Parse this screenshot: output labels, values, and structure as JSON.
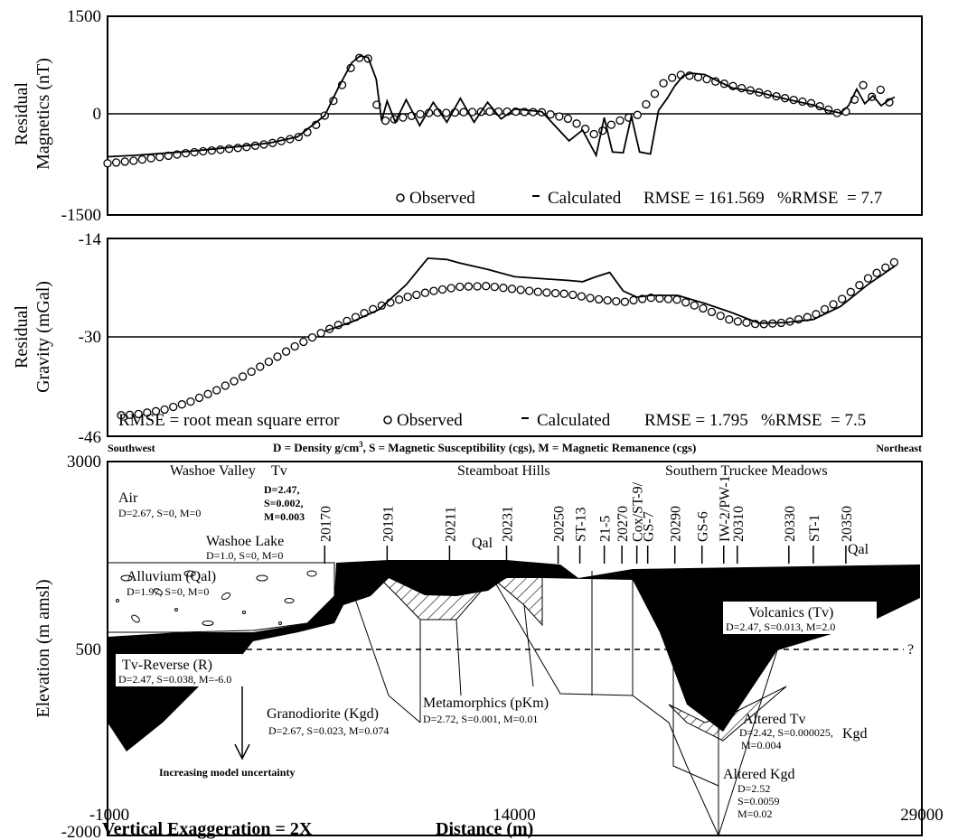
{
  "chart_data": [
    {
      "type": "line",
      "panel": "magnetics",
      "ylabel_line1": "Residual",
      "ylabel_line2": "Magnetics (nT)",
      "ylim": [
        -1500,
        1500
      ],
      "yticks": [
        "1500",
        "0",
        "-1500"
      ],
      "xlim": [
        -1000,
        29000
      ],
      "legend_observed": "Observed",
      "legend_calculated": "Calculated",
      "stats": "RMSE = 161.569   %RMSE  = 7.7",
      "series": [
        {
          "name": "Observed",
          "x": [
            -1000,
            0,
            1000,
            2000,
            3000,
            4000,
            5000,
            6000,
            6500,
            7000,
            7500,
            8000,
            8300,
            8600,
            8800,
            9000,
            9300,
            9600,
            10000,
            10500,
            11000,
            11500,
            12000,
            13000,
            14000,
            15000,
            16000,
            17000,
            17500,
            18000,
            18500,
            19000,
            19500,
            20000,
            20500,
            21000,
            22000,
            23000,
            24000,
            25000,
            25500,
            26000,
            26300,
            26600,
            26900,
            27200,
            27500,
            27800,
            28000
          ],
          "y": [
            -720,
            -680,
            -620,
            -560,
            -520,
            -480,
            -420,
            -330,
            -220,
            0,
            350,
            750,
            880,
            860,
            500,
            -60,
            -80,
            -50,
            -20,
            20,
            50,
            40,
            50,
            60,
            60,
            50,
            -50,
            -300,
            -150,
            -50,
            0,
            250,
            500,
            620,
            600,
            560,
            450,
            350,
            260,
            180,
            100,
            20,
            80,
            300,
            500,
            250,
            400,
            200,
            300
          ]
        },
        {
          "name": "Calculated",
          "x": [
            -1000,
            0,
            1000,
            2000,
            3000,
            4000,
            5000,
            6000,
            7000,
            7500,
            8000,
            8300,
            8600,
            8900,
            9100,
            9300,
            9600,
            10000,
            10500,
            11000,
            11500,
            12000,
            12500,
            13000,
            13500,
            14000,
            15000,
            16000,
            16500,
            17000,
            17300,
            17600,
            18000,
            18300,
            18600,
            19000,
            19300,
            19600,
            19900,
            20200,
            20500,
            21000,
            21500,
            22000,
            23000,
            24000,
            25000,
            25500,
            26000,
            26300,
            26600,
            26900,
            27200,
            27500,
            27800,
            28000
          ],
          "y": [
            -620,
            -600,
            -570,
            -540,
            -500,
            -460,
            -410,
            -320,
            0,
            420,
            800,
            900,
            880,
            550,
            -80,
            220,
            -100,
            240,
            -150,
            200,
            -100,
            260,
            -100,
            200,
            -50,
            100,
            60,
            -380,
            -220,
            -600,
            -30,
            -550,
            -560,
            -10,
            -550,
            -580,
            80,
            250,
            450,
            600,
            640,
            620,
            520,
            420,
            350,
            250,
            160,
            80,
            40,
            150,
            400,
            180,
            300,
            150,
            240,
            280
          ]
        }
      ]
    },
    {
      "type": "line",
      "panel": "gravity",
      "ylabel_line1": "Residual",
      "ylabel_line2": "Gravity (mGal)",
      "ylim": [
        -46,
        -14
      ],
      "yticks": [
        "-14",
        "-30",
        "-46"
      ],
      "xlim": [
        -1000,
        29000
      ],
      "legend_prefix": "RMSE = root mean square error",
      "legend_observed": "Observed",
      "legend_calculated": "Calculated",
      "stats": "RMSE = 1.795   %RMSE  = 7.5",
      "series": [
        {
          "name": "Observed",
          "x": [
            -1000,
            0,
            1000,
            2000,
            3000,
            4000,
            5000,
            6000,
            7000,
            8000,
            9000,
            10000,
            11000,
            12000,
            13000,
            14000,
            15000,
            16000,
            17000,
            18000,
            18500,
            19000,
            20000,
            21000,
            22000,
            23000,
            24000,
            25000,
            26000,
            27000,
            28000
          ],
          "y": [
            -42.7,
            -42.5,
            -41.8,
            -40.5,
            -38.6,
            -36.3,
            -33.8,
            -31.2,
            -29.0,
            -27.0,
            -25.0,
            -23.5,
            -22.5,
            -21.8,
            -21.7,
            -22.2,
            -22.7,
            -23.0,
            -23.8,
            -24.3,
            -23.9,
            -23.6,
            -23.9,
            -25.4,
            -27.3,
            -27.9,
            -27.6,
            -26.5,
            -24.0,
            -20.5,
            -17.8
          ],
          "x_range": [
            -500,
            28000
          ]
        },
        {
          "name": "Calculated",
          "x": [
            7000,
            8000,
            9000,
            10000,
            10800,
            11500,
            12000,
            13000,
            14000,
            15000,
            16000,
            16500,
            17000,
            17500,
            18000,
            18500,
            19000,
            20000,
            21000,
            22000,
            23000,
            24000,
            25000,
            26000,
            27000,
            28000
          ],
          "y": [
            -29.0,
            -27.5,
            -25.5,
            -21.5,
            -17.2,
            -17.4,
            -18.0,
            -19.0,
            -20.2,
            -20.5,
            -20.8,
            -21.0,
            -20.2,
            -19.5,
            -22.5,
            -23.5,
            -23.2,
            -23.2,
            -24.5,
            -26.0,
            -27.7,
            -27.6,
            -27.1,
            -25.0,
            -21.5,
            -18.5
          ]
        }
      ]
    },
    {
      "type": "cross-section",
      "panel": "geologic-model",
      "ylabel": "Elevation (m amsl)",
      "xlabel": "Distance (m)",
      "xlim": [
        -1000,
        29000
      ],
      "ylim": [
        -2000,
        3000
      ],
      "xticks": [
        "-1000",
        "14000",
        "29000"
      ],
      "yticks": [
        "3000",
        "500",
        "-2000"
      ],
      "dashed_level": 500,
      "header_left": "Southwest",
      "header_right": "Northeast",
      "header_center": "D = Density g/cm",
      "header_sup": "3",
      "header_center_rest": ", S = Magnetic Susceptibility (cgs), M = Magnetic Remanence (cgs)",
      "vertical_exaggeration": "Vertical Exaggeration = 2X",
      "question_mark": "?",
      "wells": [
        {
          "label": "20170",
          "x": 7000
        },
        {
          "label": "20191",
          "x": 9300
        },
        {
          "label": "20211",
          "x": 11600
        },
        {
          "label": "20231",
          "x": 13700
        },
        {
          "label": "20250",
          "x": 15600
        },
        {
          "label": "ST-13",
          "x": 16400
        },
        {
          "label": "21-5",
          "x": 17300
        },
        {
          "label": "20270",
          "x": 17950
        },
        {
          "label": "Cox/ST-9/",
          "x": 18500
        },
        {
          "label": "GS-7",
          "x": 18900
        },
        {
          "label": "20290",
          "x": 19900
        },
        {
          "label": "GS-6",
          "x": 20900
        },
        {
          "label": "IW-2/PW-1",
          "x": 21700
        },
        {
          "label": "20310",
          "x": 22200
        },
        {
          "label": "20330",
          "x": 24100
        },
        {
          "label": "ST-1",
          "x": 25000
        },
        {
          "label": "20350",
          "x": 26200
        }
      ],
      "annotations": {
        "washoe_valley": "Washoe Valley",
        "tv_title": "Tv",
        "tv_d": "D=2.47,",
        "tv_s": "S=0.002,",
        "tv_m": "M=0.003",
        "steamboat_hills": "Steamboat Hills",
        "southern_truckee": "Southern Truckee Meadows",
        "air": "Air",
        "air_props": "D=2.67, S=0, M=0",
        "washoe_lake": "Washoe Lake",
        "washoe_lake_props": "D=1.0, S=0, M=0",
        "alluvium": "Alluvium (Qal)",
        "alluvium_props": "D=1.97, S=0, M=0",
        "qal_center": "Qal",
        "qal_right": "Qal",
        "volcanics": "Volcanics (Tv)",
        "volcanics_props": "D=2.47, S=0.013, M=2.0",
        "tv_reverse": "Tv-Reverse (R)",
        "tv_reverse_props": "D=2.47, S=0.038, M=-6.0",
        "granodiorite": "Granodiorite (Kgd)",
        "granodiorite_props": "D=2.67, S=0.023, M=0.074",
        "metamorphics": "Metamorphics (pKm)",
        "metamorphics_props": "D=2.72, S=0.001, M=0.01",
        "altered_tv": "Altered Tv",
        "altered_tv_d": "D=2.42, S=0.000025,",
        "altered_tv_m": "M=0.004",
        "kgd": "Kgd",
        "altered_kgd": "Altered Kgd",
        "altered_kgd_d": "D=2.52",
        "altered_kgd_s": "S=0.0059",
        "altered_kgd_m": "M=0.02",
        "uncertainty": "Increasing model uncertainty"
      }
    }
  ]
}
